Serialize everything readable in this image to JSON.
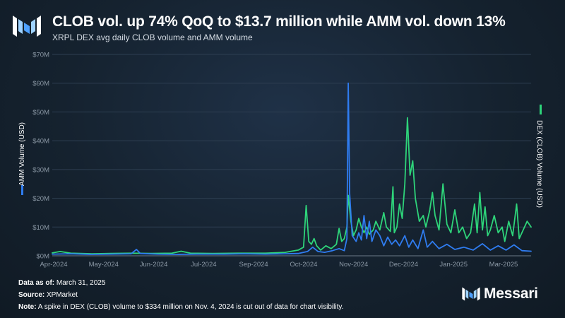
{
  "header": {
    "title": "CLOB vol. up 74% QoQ to $13.7 million while AMM vol. down 13%",
    "subtitle": "XRPL DEX avg daily CLOB volume and AMM volume"
  },
  "footer": {
    "date_label": "Data as of:",
    "date_value": "March 31, 2025",
    "source_label": "Source:",
    "source_value": "XPMarket",
    "note_label": "Note:",
    "note_value": "A spike in DEX (CLOB) volume to $334 million on Nov. 4, 2024 is cut out of data for chart visibility."
  },
  "brand": {
    "name": "Messari"
  },
  "colors": {
    "amm": "#2f7cf0",
    "clob": "#2ed47a",
    "grid": "#2e3f52",
    "axis": "#8c99a6"
  },
  "chart_data": {
    "type": "line",
    "y_left_label": "AMM Volume (USD)",
    "y_right_label": "DEX (CLOB) Volume (USD)",
    "ylim": [
      0,
      70
    ],
    "y_ticks": [
      "$0M",
      "$10M",
      "$20M",
      "$30M",
      "$40M",
      "$50M",
      "$60M",
      "$70M"
    ],
    "y_unit": "millions USD",
    "x_ticks": [
      "Apr-2024",
      "May-2024",
      "Jun-2024",
      "Jul-2024",
      "Sep-2024",
      "Oct-2024",
      "Nov-2024",
      "Dec-2024",
      "Jan-2025",
      "Mar-2025"
    ],
    "x_range": [
      "2024-04-01",
      "2025-03-31"
    ],
    "grid": true,
    "series": [
      {
        "name": "AMM Volume (USD)",
        "color": "#2f7cf0",
        "points": [
          [
            "2024-04-01",
            0.6
          ],
          [
            "2024-04-15",
            0.7
          ],
          [
            "2024-05-01",
            0.5
          ],
          [
            "2024-05-15",
            0.6
          ],
          [
            "2024-05-31",
            0.7
          ],
          [
            "2024-06-04",
            2.2
          ],
          [
            "2024-06-07",
            0.8
          ],
          [
            "2024-06-20",
            0.6
          ],
          [
            "2024-07-05",
            0.5
          ],
          [
            "2024-07-20",
            0.6
          ],
          [
            "2024-08-10",
            0.6
          ],
          [
            "2024-08-25",
            0.7
          ],
          [
            "2024-09-10",
            0.6
          ],
          [
            "2024-09-25",
            0.7
          ],
          [
            "2024-10-05",
            0.8
          ],
          [
            "2024-10-12",
            1.5
          ],
          [
            "2024-10-16",
            3.0
          ],
          [
            "2024-10-20",
            1.5
          ],
          [
            "2024-10-25",
            1.2
          ],
          [
            "2024-10-31",
            1.8
          ],
          [
            "2024-11-05",
            2.5
          ],
          [
            "2024-11-09",
            1.8
          ],
          [
            "2024-11-11",
            6.0
          ],
          [
            "2024-11-12",
            60.0
          ],
          [
            "2024-11-13",
            22.0
          ],
          [
            "2024-11-15",
            7.0
          ],
          [
            "2024-11-18",
            5.0
          ],
          [
            "2024-11-20",
            8.0
          ],
          [
            "2024-11-22",
            5.5
          ],
          [
            "2024-11-24",
            14.0
          ],
          [
            "2024-11-26",
            6.0
          ],
          [
            "2024-11-28",
            12.0
          ],
          [
            "2024-11-30",
            5.0
          ],
          [
            "2024-12-03",
            9.0
          ],
          [
            "2024-12-06",
            7.0
          ],
          [
            "2024-12-09",
            3.5
          ],
          [
            "2024-12-12",
            6.5
          ],
          [
            "2024-12-15",
            4.0
          ],
          [
            "2024-12-18",
            5.5
          ],
          [
            "2024-12-21",
            3.5
          ],
          [
            "2024-12-25",
            7.0
          ],
          [
            "2024-12-28",
            3.0
          ],
          [
            "2024-12-31",
            5.5
          ],
          [
            "2025-01-04",
            2.5
          ],
          [
            "2025-01-08",
            9.0
          ],
          [
            "2025-01-11",
            3.0
          ],
          [
            "2025-01-15",
            5.0
          ],
          [
            "2025-01-20",
            2.5
          ],
          [
            "2025-01-26",
            4.0
          ],
          [
            "2025-02-01",
            2.2
          ],
          [
            "2025-02-08",
            3.0
          ],
          [
            "2025-02-15",
            2.0
          ],
          [
            "2025-02-22",
            4.2
          ],
          [
            "2025-02-28",
            2.0
          ],
          [
            "2025-03-06",
            3.5
          ],
          [
            "2025-03-12",
            2.0
          ],
          [
            "2025-03-18",
            3.8
          ],
          [
            "2025-03-24",
            1.8
          ],
          [
            "2025-03-31",
            1.6
          ]
        ]
      },
      {
        "name": "DEX (CLOB) Volume (USD)",
        "color": "#2ed47a",
        "points": [
          [
            "2024-04-01",
            1.0
          ],
          [
            "2024-04-07",
            1.5
          ],
          [
            "2024-04-15",
            0.9
          ],
          [
            "2024-05-01",
            0.7
          ],
          [
            "2024-05-15",
            0.8
          ],
          [
            "2024-06-01",
            0.9
          ],
          [
            "2024-06-15",
            0.8
          ],
          [
            "2024-07-01",
            0.9
          ],
          [
            "2024-07-08",
            1.6
          ],
          [
            "2024-07-15",
            0.9
          ],
          [
            "2024-08-01",
            0.8
          ],
          [
            "2024-08-20",
            0.9
          ],
          [
            "2024-09-10",
            0.9
          ],
          [
            "2024-09-25",
            1.2
          ],
          [
            "2024-10-05",
            2.0
          ],
          [
            "2024-10-09",
            3.0
          ],
          [
            "2024-10-11",
            17.5
          ],
          [
            "2024-10-13",
            5.0
          ],
          [
            "2024-10-15",
            4.0
          ],
          [
            "2024-10-17",
            6.0
          ],
          [
            "2024-10-19",
            3.5
          ],
          [
            "2024-10-22",
            2.0
          ],
          [
            "2024-10-26",
            3.5
          ],
          [
            "2024-10-30",
            2.5
          ],
          [
            "2024-11-03",
            4.0
          ],
          [
            "2024-11-05",
            9.5
          ],
          [
            "2024-11-07",
            5.0
          ],
          [
            "2024-11-09",
            6.0
          ],
          [
            "2024-11-11",
            10.0
          ],
          [
            "2024-11-12",
            21.0
          ],
          [
            "2024-11-14",
            12.0
          ],
          [
            "2024-11-16",
            7.0
          ],
          [
            "2024-11-18",
            9.0
          ],
          [
            "2024-11-20",
            13.0
          ],
          [
            "2024-11-22",
            10.0
          ],
          [
            "2024-11-24",
            8.0
          ],
          [
            "2024-11-26",
            10.0
          ],
          [
            "2024-11-28",
            7.5
          ],
          [
            "2024-12-01",
            9.0
          ],
          [
            "2024-12-03",
            12.0
          ],
          [
            "2024-12-06",
            9.0
          ],
          [
            "2024-12-09",
            15.0
          ],
          [
            "2024-12-11",
            10.0
          ],
          [
            "2024-12-14",
            8.5
          ],
          [
            "2024-12-16",
            24.0
          ],
          [
            "2024-12-17",
            8.0
          ],
          [
            "2024-12-19",
            10.0
          ],
          [
            "2024-12-21",
            18.0
          ],
          [
            "2024-12-23",
            13.0
          ],
          [
            "2024-12-25",
            25.0
          ],
          [
            "2024-12-27",
            48.0
          ],
          [
            "2024-12-29",
            28.0
          ],
          [
            "2024-12-31",
            33.0
          ],
          [
            "2025-01-02",
            20.0
          ],
          [
            "2025-01-05",
            12.0
          ],
          [
            "2025-01-08",
            14.0
          ],
          [
            "2025-01-10",
            10.0
          ],
          [
            "2025-01-13",
            16.0
          ],
          [
            "2025-01-15",
            22.0
          ],
          [
            "2025-01-17",
            14.0
          ],
          [
            "2025-01-20",
            9.0
          ],
          [
            "2025-01-23",
            25.0
          ],
          [
            "2025-01-26",
            11.0
          ],
          [
            "2025-01-29",
            8.0
          ],
          [
            "2025-02-01",
            16.0
          ],
          [
            "2025-02-04",
            8.0
          ],
          [
            "2025-02-07",
            10.0
          ],
          [
            "2025-02-10",
            6.0
          ],
          [
            "2025-02-13",
            8.0
          ],
          [
            "2025-02-16",
            18.0
          ],
          [
            "2025-02-18",
            8.0
          ],
          [
            "2025-02-20",
            22.0
          ],
          [
            "2025-02-22",
            9.0
          ],
          [
            "2025-02-24",
            17.0
          ],
          [
            "2025-02-26",
            7.0
          ],
          [
            "2025-02-28",
            9.0
          ],
          [
            "2025-03-03",
            14.0
          ],
          [
            "2025-03-06",
            8.0
          ],
          [
            "2025-03-09",
            10.0
          ],
          [
            "2025-03-11",
            5.0
          ],
          [
            "2025-03-14",
            12.0
          ],
          [
            "2025-03-17",
            7.0
          ],
          [
            "2025-03-20",
            18.0
          ],
          [
            "2025-03-22",
            6.0
          ],
          [
            "2025-03-25",
            9.0
          ],
          [
            "2025-03-28",
            12.0
          ],
          [
            "2025-03-31",
            10.0
          ]
        ]
      }
    ]
  }
}
